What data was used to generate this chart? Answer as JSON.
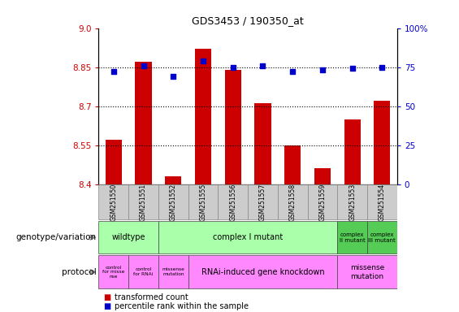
{
  "title": "GDS3453 / 190350_at",
  "samples": [
    "GSM251550",
    "GSM251551",
    "GSM251552",
    "GSM251555",
    "GSM251556",
    "GSM251557",
    "GSM251558",
    "GSM251559",
    "GSM251553",
    "GSM251554"
  ],
  "bar_values": [
    8.57,
    8.87,
    8.43,
    8.92,
    8.84,
    8.71,
    8.55,
    8.46,
    8.65,
    8.72
  ],
  "dot_values": [
    72,
    76,
    69,
    79,
    75,
    76,
    72,
    73,
    74,
    75
  ],
  "ylim_left": [
    8.4,
    9.0
  ],
  "ylim_right": [
    0,
    100
  ],
  "yticks_left": [
    8.4,
    8.55,
    8.7,
    8.85,
    9.0
  ],
  "yticks_right": [
    0,
    25,
    50,
    75,
    100
  ],
  "hlines": [
    8.55,
    8.7,
    8.85
  ],
  "bar_color": "#cc0000",
  "dot_color": "#0000cc",
  "bar_bottom": 8.4,
  "sample_label_color": "#dddddd",
  "geno_color": "#aaffaa",
  "geno_color_dark": "#55cc55",
  "proto_color": "#ff88ff",
  "legend_bar_label": "transformed count",
  "legend_dot_label": "percentile rank within the sample",
  "genotype_label": "genotype/variation",
  "protocol_label": "protocol"
}
